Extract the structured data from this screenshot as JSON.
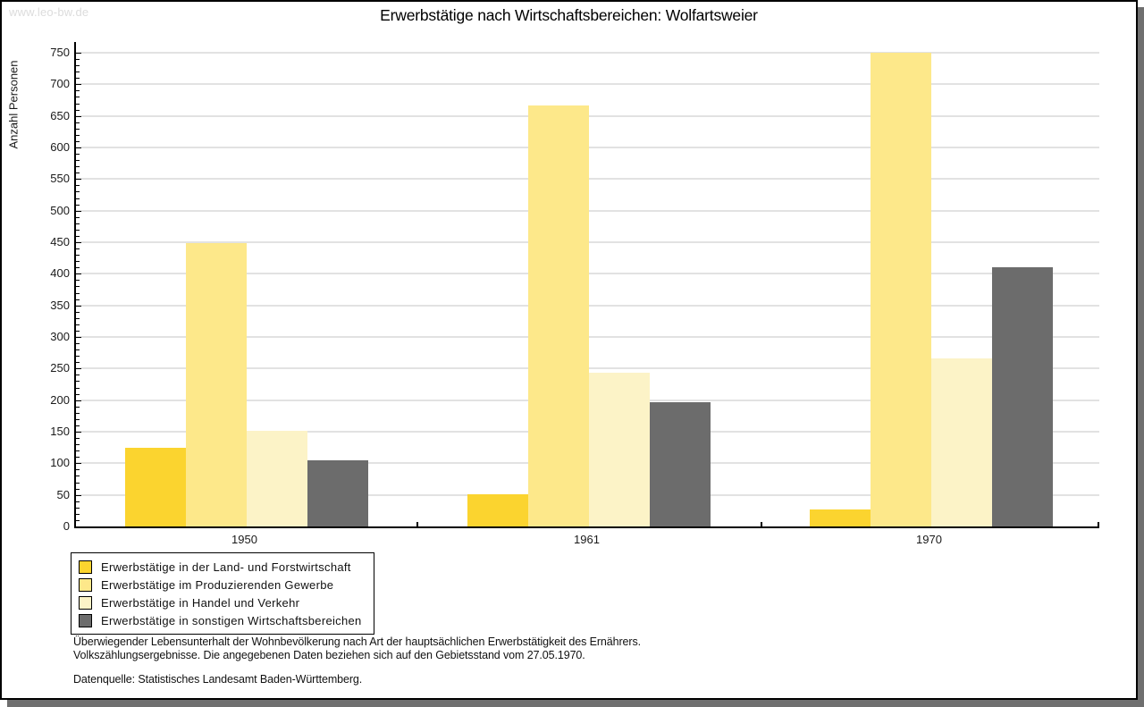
{
  "watermark": "www.leo-bw.de",
  "title": "Erwerbstätige nach Wirtschaftsbereichen: Wolfartsweier",
  "chart_data": {
    "type": "bar",
    "title": "Erwerbstätige nach Wirtschaftsbereichen: Wolfartsweier",
    "xlabel": "",
    "ylabel": "Anzahl Personen",
    "categories": [
      "1950",
      "1961",
      "1970"
    ],
    "series": [
      {
        "name": "Erwerbstätige in der Land- und Forstwirtschaft",
        "color": "#fbd42f",
        "values": [
          125,
          51,
          27
        ]
      },
      {
        "name": "Erwerbstätige im Produzierenden Gewerbe",
        "color": "#fde88a",
        "values": [
          449,
          666,
          750
        ]
      },
      {
        "name": "Erwerbstätige in Handel und Verkehr",
        "color": "#fcf3c7",
        "values": [
          151,
          244,
          266
        ]
      },
      {
        "name": "Erwerbstätige in sonstigen Wirtschaftsbereichen",
        "color": "#6c6c6c",
        "values": [
          105,
          197,
          410
        ]
      }
    ],
    "ylim": [
      0,
      750
    ],
    "ytick_step": 50,
    "ytick_minor_step": 10,
    "grid": true,
    "legend_position": "bottom-left"
  },
  "footer": {
    "line1": "Überwiegender Lebensunterhalt der Wohnbevölkerung nach Art der hauptsächlichen Erwerbstätigkeit des Ernährers.",
    "line2": "Volkszählungsergebnisse. Die angegebenen Daten beziehen sich auf den Gebietsstand vom 27.05.1970.",
    "source": "Datenquelle: Statistisches Landesamt Baden-Württemberg."
  },
  "colors": {
    "gridline": "#e2e2e2",
    "axis": "#000000",
    "watermark": "#dcdcdc",
    "page_shadow": "#6f6f6f",
    "background": "#ffffff"
  }
}
